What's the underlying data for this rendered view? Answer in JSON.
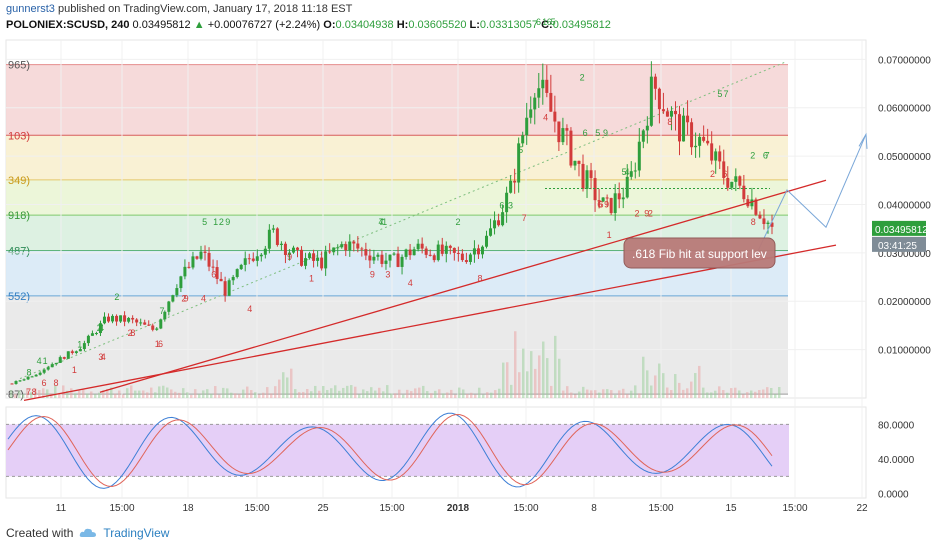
{
  "header": {
    "publisher_user": "gunnerst3",
    "publisher_text": "published on TradingView.com, January 17, 2018 11:18 EST",
    "symbol": "POLONIEX:SCUSD, 240",
    "last": "0.03495812",
    "arrow": "▲",
    "change": "+0.00076727 (+2.24%)",
    "o_label": "O:",
    "o_value": "0.03404938",
    "h_label": "H:",
    "h_value": "0.03605520",
    "l_label": "L:",
    "l_value": "0.03313057",
    "c_label": "C:",
    "c_value": "0.03495812"
  },
  "footer": {
    "created_with": "Created with",
    "brand": "TradingView"
  },
  "colors": {
    "up": "#2e9e3c",
    "down": "#d23b3b",
    "trend": "#d42a2a",
    "stoch_k": "#3d7fd6",
    "stoch_d": "#e0655a",
    "stoch_band": "#e5cff7"
  },
  "chart_data": [
    {
      "type": "candlestick",
      "symbol": "POLONIEX:SCUSD",
      "interval": "240",
      "y_axis_labels": [
        "0.07000000",
        "0.06000000",
        "0.05000000",
        "0.04000000",
        "0.03000000",
        "0.02000000",
        "0.01000000"
      ],
      "ylim": [
        0.0,
        0.074
      ],
      "x_tick_labels": [
        "11",
        "15:00",
        "18",
        "15:00",
        "25",
        "15:00",
        "2018",
        "15:00",
        "8",
        "15:00",
        "15",
        "15:00",
        "22"
      ],
      "last_price_label": "0.03495812",
      "countdown_label": "03:41:25",
      "fib_left_labels": [
        "965)",
        "103)",
        "349)",
        "918)",
        "487)",
        "552)",
        "87)"
      ],
      "fib_levels": [
        0.0689,
        0.0543,
        0.0451,
        0.0378,
        0.0305,
        0.0211,
        0.0008
      ],
      "fib_zone_colors": [
        "#f5d3d3",
        "#f8efcd",
        "#e9f4d2",
        "#d7efdd",
        "#d6e7f6",
        "#e6e6e6"
      ],
      "close_path": [
        0.003,
        0.005,
        0.008,
        0.011,
        0.0165,
        0.016,
        0.014,
        0.0245,
        0.03,
        0.022,
        0.029,
        0.034,
        0.029,
        0.028,
        0.032,
        0.03,
        0.028,
        0.031,
        0.03,
        0.029,
        0.033,
        0.043,
        0.066,
        0.056,
        0.046,
        0.039,
        0.044,
        0.065,
        0.056,
        0.053,
        0.046,
        0.042,
        0.035
      ],
      "annotation": ".618 Fib hit at support lev",
      "td_labels_green": [
        "1",
        "2",
        "3",
        "4",
        "5",
        "6",
        "7",
        "8",
        "9"
      ],
      "td_labels_red": [
        "1",
        "2",
        "3",
        "4",
        "5",
        "6",
        "7",
        "8",
        "9"
      ],
      "grid": true
    },
    {
      "type": "line",
      "name": "Stochastic RSI",
      "y_axis_labels": [
        "80.0000",
        "40.0000",
        "0.0000"
      ],
      "ylim": [
        -5,
        100
      ],
      "band": [
        20,
        80
      ]
    }
  ]
}
